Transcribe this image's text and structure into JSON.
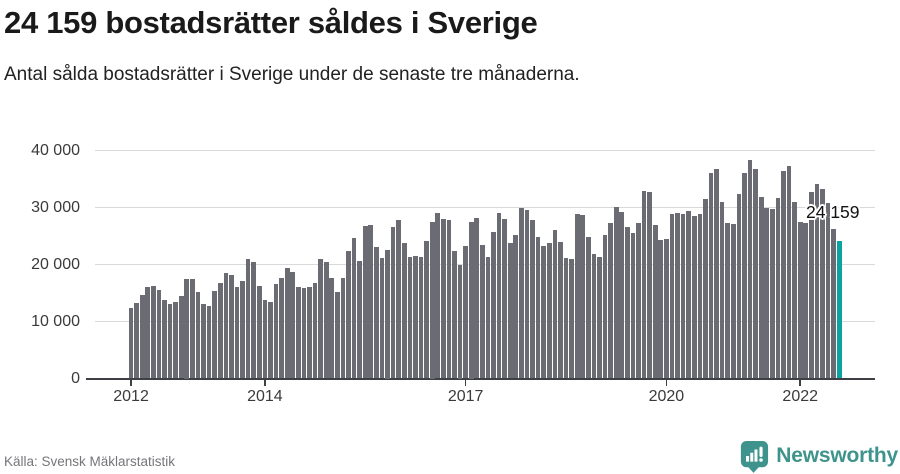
{
  "header": {
    "title": "24 159 bostadsrätter såldes i Sverige",
    "subtitle": "Antal sålda bostadsrätter i Sverige under de senaste tre månaderna."
  },
  "chart_data": {
    "type": "bar",
    "title": "24 159 bostadsrätter såldes i Sverige",
    "subtitle": "Antal sålda bostadsrätter i Sverige under de senaste tre månaderna.",
    "unit": "sålda bostadsrätter (rullande tre månader)",
    "x": [
      "2012-01",
      "2012-02",
      "2012-03",
      "2012-04",
      "2012-05",
      "2012-06",
      "2012-07",
      "2012-08",
      "2012-09",
      "2012-10",
      "2012-11",
      "2012-12",
      "2013-01",
      "2013-02",
      "2013-03",
      "2013-04",
      "2013-05",
      "2013-06",
      "2013-07",
      "2013-08",
      "2013-09",
      "2013-10",
      "2013-11",
      "2013-12",
      "2014-01",
      "2014-02",
      "2014-03",
      "2014-04",
      "2014-05",
      "2014-06",
      "2014-07",
      "2014-08",
      "2014-09",
      "2014-10",
      "2014-11",
      "2014-12",
      "2015-01",
      "2015-02",
      "2015-03",
      "2015-04",
      "2015-05",
      "2015-06",
      "2015-07",
      "2015-08",
      "2015-09",
      "2015-10",
      "2015-11",
      "2015-12",
      "2016-01",
      "2016-02",
      "2016-03",
      "2016-04",
      "2016-05",
      "2016-06",
      "2016-07",
      "2016-08",
      "2016-09",
      "2016-10",
      "2016-11",
      "2016-12",
      "2017-01",
      "2017-02",
      "2017-03",
      "2017-04",
      "2017-05",
      "2017-06",
      "2017-07",
      "2017-08",
      "2017-09",
      "2017-10",
      "2017-11",
      "2017-12",
      "2018-01",
      "2018-02",
      "2018-03",
      "2018-04",
      "2018-05",
      "2018-06",
      "2018-07",
      "2018-08",
      "2018-09",
      "2018-10",
      "2018-11",
      "2018-12",
      "2019-01",
      "2019-02",
      "2019-03",
      "2019-04",
      "2019-05",
      "2019-06",
      "2019-07",
      "2019-08",
      "2019-09",
      "2019-10",
      "2019-11",
      "2019-12",
      "2020-01",
      "2020-02",
      "2020-03",
      "2020-04",
      "2020-05",
      "2020-06",
      "2020-07",
      "2020-08",
      "2020-09",
      "2020-10",
      "2020-11",
      "2020-12",
      "2021-01",
      "2021-02",
      "2021-03",
      "2021-04",
      "2021-05",
      "2021-06",
      "2021-07",
      "2021-08",
      "2021-09",
      "2021-10",
      "2021-11",
      "2021-12",
      "2022-01",
      "2022-02",
      "2022-03",
      "2022-04",
      "2022-05",
      "2022-06",
      "2022-07",
      "2022-08"
    ],
    "values": [
      12300,
      13200,
      14700,
      16000,
      16300,
      15500,
      13800,
      13100,
      13400,
      14500,
      17500,
      17400,
      15100,
      13000,
      12700,
      15300,
      16700,
      18500,
      18200,
      16000,
      17100,
      21000,
      20500,
      16300,
      13800,
      13500,
      16600,
      17600,
      19300,
      18700,
      16000,
      15800,
      16000,
      16800,
      20900,
      20500,
      17600,
      15100,
      17700,
      22300,
      24600,
      20700,
      26700,
      27000,
      23000,
      21100,
      22500,
      26600,
      27800,
      23700,
      21400,
      21500,
      21400,
      24200,
      27500,
      29100,
      28000,
      27800,
      22300,
      20000,
      23200,
      27500,
      28200,
      23400,
      21400,
      25700,
      29100,
      28000,
      23700,
      25100,
      29900,
      29500,
      27800,
      24900,
      23300,
      23700,
      26100,
      24000,
      21200,
      20900,
      28900,
      28700,
      24900,
      21800,
      21400,
      25100,
      27200,
      30100,
      29200,
      26600,
      25600,
      27200,
      32900,
      32700,
      26900,
      24300,
      24500,
      28800,
      29000,
      28800,
      29400,
      28500,
      28800,
      31500,
      36100,
      36800,
      30900,
      27300,
      27100,
      32400,
      36000,
      38400,
      36800,
      31800,
      29900,
      29800,
      31700,
      36400,
      37300,
      30900,
      27400,
      27200,
      32700,
      34200,
      33200,
      30800,
      26300,
      24159
    ],
    "highlight_index": 127,
    "highlight_value": 24159,
    "highlight_value_label": "24 159",
    "ylim": [
      0,
      40000
    ],
    "y_ticks": [
      "0",
      "10 000",
      "20 000",
      "30 000",
      "40 000"
    ],
    "x_ticks": [
      {
        "label": "2012",
        "month": 0
      },
      {
        "label": "2014",
        "month": 24
      },
      {
        "label": "2017",
        "month": 60
      },
      {
        "label": "2020",
        "month": 96
      },
      {
        "label": "2022",
        "month": 120
      }
    ],
    "grid": true,
    "legend": "none",
    "bar_color": "#6b6b73",
    "highlight_color": "#0ba3a2"
  },
  "footer": {
    "source": "Källa: Svensk Mäklarstatistik",
    "brand": "Newsworthy",
    "brand_color": "#3e948c"
  }
}
